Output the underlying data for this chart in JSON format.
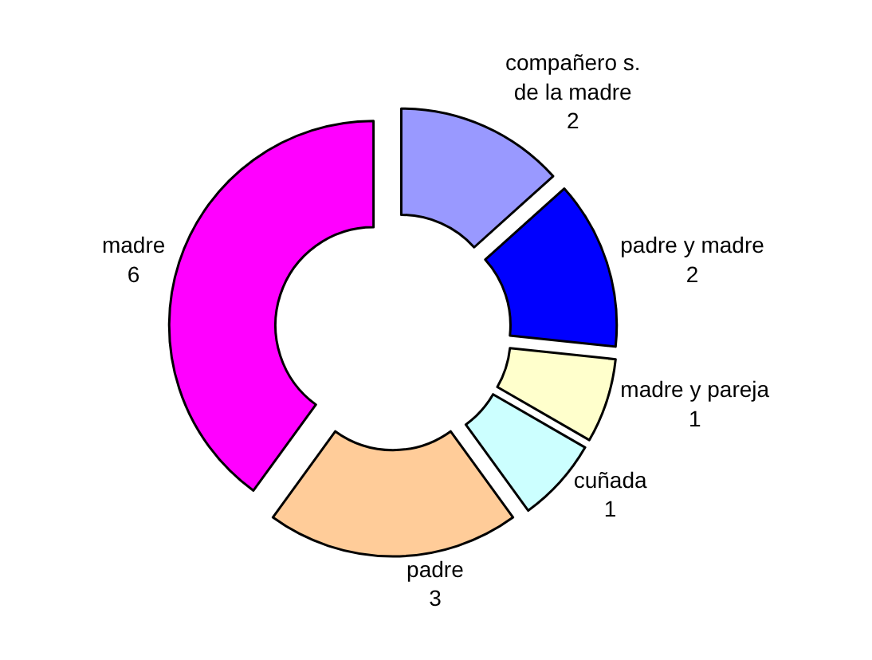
{
  "chart_data": {
    "type": "donut",
    "categories": [
      "compañero s. de la madre",
      "padre y madre",
      "madre y pareja",
      "cuñada",
      "padre",
      "madre"
    ],
    "values": [
      2,
      2,
      1,
      1,
      3,
      6
    ],
    "colors": [
      "#9999ff",
      "#0000ff",
      "#ffffcc",
      "#ccffff",
      "#ffcc99",
      "#ff00ff"
    ],
    "data_labels": true,
    "legend": false
  }
}
